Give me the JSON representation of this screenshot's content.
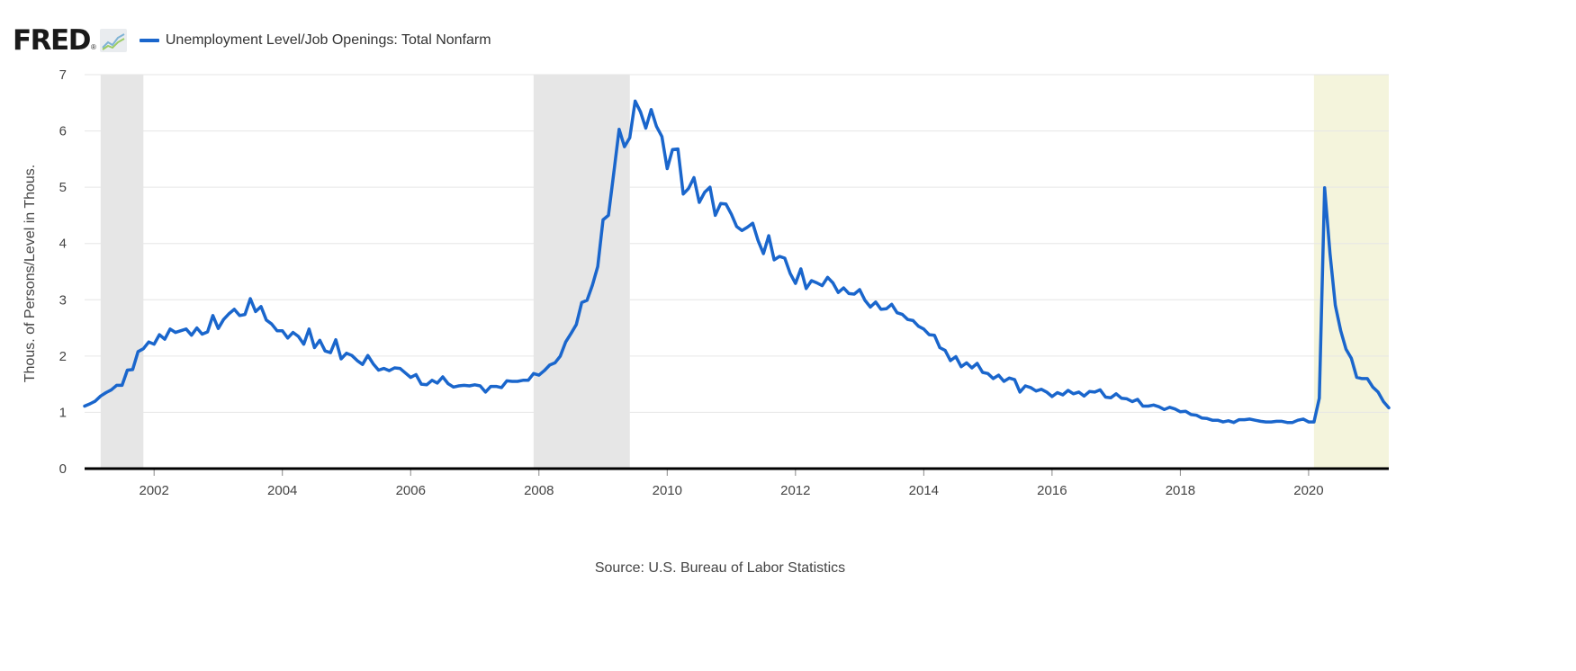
{
  "header": {
    "logo_text": "FRED",
    "logo_mark": "®",
    "logo_icon": "trend-chart-icon"
  },
  "source": "Source: U.S. Bureau of Labor Statistics",
  "colors": {
    "series": "#1a66cc",
    "recession": "#e6e6e6",
    "highlight": "#f4f4dc",
    "grid": "#e6e6e6",
    "axis": "#000000"
  },
  "chart_data": {
    "type": "line",
    "title": "",
    "xlabel": "",
    "ylabel": "Thous. of Persons/Level in Thous.",
    "xlim": [
      "2000-12",
      "2021-04"
    ],
    "ylim": [
      0,
      7
    ],
    "yticks": [
      0,
      1,
      2,
      3,
      4,
      5,
      6,
      7
    ],
    "xticks": [
      "2002",
      "2004",
      "2006",
      "2008",
      "2010",
      "2012",
      "2014",
      "2016",
      "2018",
      "2020"
    ],
    "grid": true,
    "legend": "top-left",
    "shaded_periods": [
      {
        "start": "2001-03",
        "end": "2001-11",
        "color": "#e6e6e6"
      },
      {
        "start": "2007-12",
        "end": "2009-06",
        "color": "#e6e6e6"
      },
      {
        "start": "2020-02",
        "end": "2021-04",
        "color": "#f4f4dc"
      }
    ],
    "series": [
      {
        "name": "Unemployment Level/Job Openings: Total Nonfarm",
        "color": "#1a66cc",
        "points": [
          [
            "2000-12",
            1.11
          ],
          [
            "2001-01",
            1.15
          ],
          [
            "2001-02",
            1.2
          ],
          [
            "2001-03",
            1.29
          ],
          [
            "2001-04",
            1.35
          ],
          [
            "2001-05",
            1.4
          ],
          [
            "2001-06",
            1.48
          ],
          [
            "2001-07",
            1.48
          ],
          [
            "2001-08",
            1.75
          ],
          [
            "2001-09",
            1.76
          ],
          [
            "2001-10",
            2.08
          ],
          [
            "2001-11",
            2.13
          ],
          [
            "2001-12",
            2.25
          ],
          [
            "2002-01",
            2.21
          ],
          [
            "2002-02",
            2.38
          ],
          [
            "2002-03",
            2.3
          ],
          [
            "2002-04",
            2.48
          ],
          [
            "2002-05",
            2.42
          ],
          [
            "2002-06",
            2.45
          ],
          [
            "2002-07",
            2.48
          ],
          [
            "2002-08",
            2.37
          ],
          [
            "2002-09",
            2.5
          ],
          [
            "2002-10",
            2.39
          ],
          [
            "2002-11",
            2.43
          ],
          [
            "2002-12",
            2.72
          ],
          [
            "2003-01",
            2.49
          ],
          [
            "2003-02",
            2.65
          ],
          [
            "2003-03",
            2.75
          ],
          [
            "2003-04",
            2.83
          ],
          [
            "2003-05",
            2.72
          ],
          [
            "2003-06",
            2.74
          ],
          [
            "2003-07",
            3.02
          ],
          [
            "2003-08",
            2.79
          ],
          [
            "2003-09",
            2.88
          ],
          [
            "2003-10",
            2.64
          ],
          [
            "2003-11",
            2.57
          ],
          [
            "2003-12",
            2.45
          ],
          [
            "2004-01",
            2.45
          ],
          [
            "2004-02",
            2.32
          ],
          [
            "2004-03",
            2.42
          ],
          [
            "2004-04",
            2.35
          ],
          [
            "2004-05",
            2.21
          ],
          [
            "2004-06",
            2.48
          ],
          [
            "2004-07",
            2.15
          ],
          [
            "2004-08",
            2.28
          ],
          [
            "2004-09",
            2.09
          ],
          [
            "2004-10",
            2.06
          ],
          [
            "2004-11",
            2.29
          ],
          [
            "2004-12",
            1.95
          ],
          [
            "2005-01",
            2.05
          ],
          [
            "2005-02",
            2.01
          ],
          [
            "2005-03",
            1.92
          ],
          [
            "2005-04",
            1.85
          ],
          [
            "2005-05",
            2.01
          ],
          [
            "2005-06",
            1.86
          ],
          [
            "2005-07",
            1.75
          ],
          [
            "2005-08",
            1.78
          ],
          [
            "2005-09",
            1.74
          ],
          [
            "2005-10",
            1.79
          ],
          [
            "2005-11",
            1.78
          ],
          [
            "2005-12",
            1.7
          ],
          [
            "2006-01",
            1.62
          ],
          [
            "2006-02",
            1.67
          ],
          [
            "2006-03",
            1.5
          ],
          [
            "2006-04",
            1.49
          ],
          [
            "2006-05",
            1.57
          ],
          [
            "2006-06",
            1.52
          ],
          [
            "2006-07",
            1.63
          ],
          [
            "2006-08",
            1.51
          ],
          [
            "2006-09",
            1.45
          ],
          [
            "2006-10",
            1.47
          ],
          [
            "2006-11",
            1.48
          ],
          [
            "2006-12",
            1.47
          ],
          [
            "2007-01",
            1.49
          ],
          [
            "2007-02",
            1.47
          ],
          [
            "2007-03",
            1.36
          ],
          [
            "2007-04",
            1.46
          ],
          [
            "2007-05",
            1.46
          ],
          [
            "2007-06",
            1.44
          ],
          [
            "2007-07",
            1.56
          ],
          [
            "2007-08",
            1.55
          ],
          [
            "2007-09",
            1.55
          ],
          [
            "2007-10",
            1.57
          ],
          [
            "2007-11",
            1.57
          ],
          [
            "2007-12",
            1.69
          ],
          [
            "2008-01",
            1.66
          ],
          [
            "2008-02",
            1.74
          ],
          [
            "2008-03",
            1.84
          ],
          [
            "2008-04",
            1.88
          ],
          [
            "2008-05",
            2.0
          ],
          [
            "2008-06",
            2.25
          ],
          [
            "2008-07",
            2.4
          ],
          [
            "2008-08",
            2.56
          ],
          [
            "2008-09",
            2.95
          ],
          [
            "2008-10",
            2.99
          ],
          [
            "2008-11",
            3.26
          ],
          [
            "2008-12",
            3.59
          ],
          [
            "2009-01",
            4.42
          ],
          [
            "2009-02",
            4.5
          ],
          [
            "2009-03",
            5.25
          ],
          [
            "2009-04",
            6.03
          ],
          [
            "2009-05",
            5.72
          ],
          [
            "2009-06",
            5.88
          ],
          [
            "2009-07",
            6.53
          ],
          [
            "2009-08",
            6.34
          ],
          [
            "2009-09",
            6.05
          ],
          [
            "2009-10",
            6.38
          ],
          [
            "2009-11",
            6.08
          ],
          [
            "2009-12",
            5.9
          ],
          [
            "2010-01",
            5.33
          ],
          [
            "2010-02",
            5.67
          ],
          [
            "2010-03",
            5.68
          ],
          [
            "2010-04",
            4.88
          ],
          [
            "2010-05",
            4.98
          ],
          [
            "2010-06",
            5.17
          ],
          [
            "2010-07",
            4.73
          ],
          [
            "2010-08",
            4.91
          ],
          [
            "2010-09",
            5.0
          ],
          [
            "2010-10",
            4.5
          ],
          [
            "2010-11",
            4.71
          ],
          [
            "2010-12",
            4.7
          ],
          [
            "2011-01",
            4.52
          ],
          [
            "2011-02",
            4.3
          ],
          [
            "2011-03",
            4.23
          ],
          [
            "2011-04",
            4.29
          ],
          [
            "2011-05",
            4.36
          ],
          [
            "2011-06",
            4.05
          ],
          [
            "2011-07",
            3.82
          ],
          [
            "2011-08",
            4.14
          ],
          [
            "2011-09",
            3.71
          ],
          [
            "2011-10",
            3.77
          ],
          [
            "2011-11",
            3.74
          ],
          [
            "2011-12",
            3.47
          ],
          [
            "2012-01",
            3.29
          ],
          [
            "2012-02",
            3.55
          ],
          [
            "2012-03",
            3.2
          ],
          [
            "2012-04",
            3.34
          ],
          [
            "2012-05",
            3.3
          ],
          [
            "2012-06",
            3.25
          ],
          [
            "2012-07",
            3.4
          ],
          [
            "2012-08",
            3.3
          ],
          [
            "2012-09",
            3.13
          ],
          [
            "2012-10",
            3.21
          ],
          [
            "2012-11",
            3.11
          ],
          [
            "2012-12",
            3.1
          ],
          [
            "2013-01",
            3.18
          ],
          [
            "2013-02",
            2.99
          ],
          [
            "2013-03",
            2.87
          ],
          [
            "2013-04",
            2.96
          ],
          [
            "2013-05",
            2.83
          ],
          [
            "2013-06",
            2.84
          ],
          [
            "2013-07",
            2.92
          ],
          [
            "2013-08",
            2.77
          ],
          [
            "2013-09",
            2.74
          ],
          [
            "2013-10",
            2.65
          ],
          [
            "2013-11",
            2.63
          ],
          [
            "2013-12",
            2.53
          ],
          [
            "2014-01",
            2.48
          ],
          [
            "2014-02",
            2.38
          ],
          [
            "2014-03",
            2.37
          ],
          [
            "2014-04",
            2.15
          ],
          [
            "2014-05",
            2.1
          ],
          [
            "2014-06",
            1.92
          ],
          [
            "2014-07",
            1.99
          ],
          [
            "2014-08",
            1.81
          ],
          [
            "2014-09",
            1.88
          ],
          [
            "2014-10",
            1.79
          ],
          [
            "2014-11",
            1.87
          ],
          [
            "2014-12",
            1.71
          ],
          [
            "2015-01",
            1.69
          ],
          [
            "2015-02",
            1.6
          ],
          [
            "2015-03",
            1.66
          ],
          [
            "2015-04",
            1.55
          ],
          [
            "2015-05",
            1.61
          ],
          [
            "2015-06",
            1.58
          ],
          [
            "2015-07",
            1.36
          ],
          [
            "2015-08",
            1.47
          ],
          [
            "2015-09",
            1.44
          ],
          [
            "2015-10",
            1.38
          ],
          [
            "2015-11",
            1.41
          ],
          [
            "2015-12",
            1.36
          ],
          [
            "2016-01",
            1.28
          ],
          [
            "2016-02",
            1.35
          ],
          [
            "2016-03",
            1.31
          ],
          [
            "2016-04",
            1.39
          ],
          [
            "2016-05",
            1.33
          ],
          [
            "2016-06",
            1.36
          ],
          [
            "2016-07",
            1.29
          ],
          [
            "2016-08",
            1.37
          ],
          [
            "2016-09",
            1.36
          ],
          [
            "2016-10",
            1.4
          ],
          [
            "2016-11",
            1.27
          ],
          [
            "2016-12",
            1.26
          ],
          [
            "2017-01",
            1.33
          ],
          [
            "2017-02",
            1.25
          ],
          [
            "2017-03",
            1.24
          ],
          [
            "2017-04",
            1.19
          ],
          [
            "2017-05",
            1.23
          ],
          [
            "2017-06",
            1.11
          ],
          [
            "2017-07",
            1.11
          ],
          [
            "2017-08",
            1.13
          ],
          [
            "2017-09",
            1.1
          ],
          [
            "2017-10",
            1.05
          ],
          [
            "2017-11",
            1.09
          ],
          [
            "2017-12",
            1.06
          ],
          [
            "2018-01",
            1.01
          ],
          [
            "2018-02",
            1.02
          ],
          [
            "2018-03",
            0.96
          ],
          [
            "2018-04",
            0.95
          ],
          [
            "2018-05",
            0.9
          ],
          [
            "2018-06",
            0.89
          ],
          [
            "2018-07",
            0.86
          ],
          [
            "2018-08",
            0.86
          ],
          [
            "2018-09",
            0.83
          ],
          [
            "2018-10",
            0.85
          ],
          [
            "2018-11",
            0.82
          ],
          [
            "2018-12",
            0.87
          ],
          [
            "2019-01",
            0.87
          ],
          [
            "2019-02",
            0.88
          ],
          [
            "2019-03",
            0.86
          ],
          [
            "2019-04",
            0.84
          ],
          [
            "2019-05",
            0.83
          ],
          [
            "2019-06",
            0.83
          ],
          [
            "2019-07",
            0.84
          ],
          [
            "2019-08",
            0.84
          ],
          [
            "2019-09",
            0.82
          ],
          [
            "2019-10",
            0.82
          ],
          [
            "2019-11",
            0.86
          ],
          [
            "2019-12",
            0.88
          ],
          [
            "2020-01",
            0.83
          ],
          [
            "2020-02",
            0.83
          ],
          [
            "2020-03",
            1.25
          ],
          [
            "2020-04",
            4.99
          ],
          [
            "2020-05",
            3.82
          ],
          [
            "2020-06",
            2.9
          ],
          [
            "2020-07",
            2.45
          ],
          [
            "2020-08",
            2.12
          ],
          [
            "2020-09",
            1.96
          ],
          [
            "2020-10",
            1.62
          ],
          [
            "2020-11",
            1.6
          ],
          [
            "2020-12",
            1.6
          ],
          [
            "2021-01",
            1.45
          ],
          [
            "2021-02",
            1.36
          ],
          [
            "2021-03",
            1.19
          ],
          [
            "2021-04",
            1.08
          ]
        ]
      }
    ]
  }
}
